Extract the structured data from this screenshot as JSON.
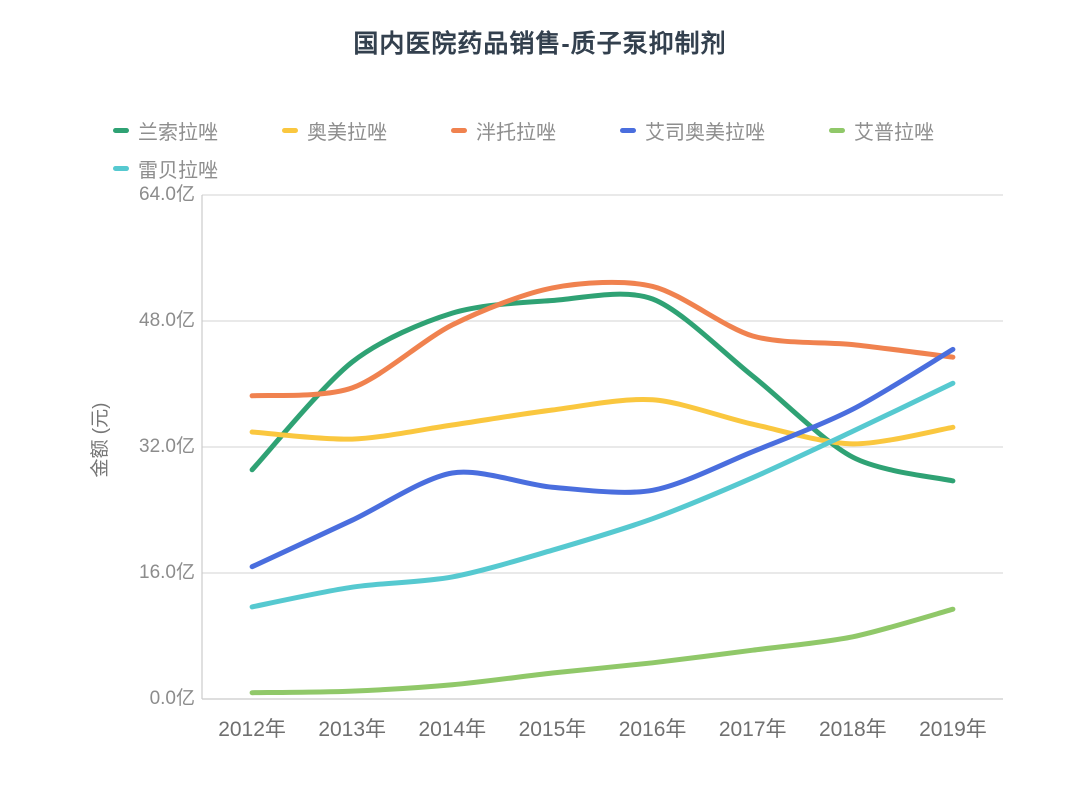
{
  "title": "国内医院药品销售-质子泵抑制剂",
  "legend": {
    "items": [
      "兰索拉唑",
      "奥美拉唑",
      "泮托拉唑",
      "艾司奥美拉唑",
      "艾普拉唑",
      "雷贝拉唑"
    ]
  },
  "y_axis": {
    "name": "金额 (元)",
    "tick_labels_top_to_bottom": [
      "64.0亿",
      "48.0亿",
      "32.0亿",
      "16.0亿",
      "0.0亿"
    ]
  },
  "x_axis": {
    "tick_labels": [
      "2012年",
      "2013年",
      "2014年",
      "2015年",
      "2016年",
      "2017年",
      "2018年",
      "2019年"
    ]
  },
  "chart_data": {
    "type": "line",
    "smooth": true,
    "title": "国内医院药品销售-质子泵抑制剂",
    "categories": [
      "2012年",
      "2013年",
      "2014年",
      "2015年",
      "2016年",
      "2017年",
      "2018年",
      "2019年"
    ],
    "series": [
      {
        "name": "兰索拉唑",
        "color": "#2FA274",
        "values": [
          29.1,
          42.8,
          49.0,
          50.6,
          50.8,
          41.0,
          30.7,
          27.7
        ]
      },
      {
        "name": "奥美拉唑",
        "color": "#FAC73F",
        "values": [
          33.9,
          33.0,
          34.8,
          36.7,
          38.0,
          34.9,
          32.4,
          34.5
        ]
      },
      {
        "name": "泮托拉唑",
        "color": "#F0824F",
        "values": [
          38.5,
          39.5,
          47.5,
          52.2,
          52.4,
          46.1,
          45.0,
          43.4
        ]
      },
      {
        "name": "艾司奥美拉唑",
        "color": "#4A6EDE",
        "values": [
          16.8,
          22.7,
          28.7,
          26.9,
          26.5,
          31.4,
          36.8,
          44.4
        ]
      },
      {
        "name": "艾普拉唑",
        "color": "#90C869",
        "values": [
          0.8,
          1.0,
          1.8,
          3.3,
          4.6,
          6.2,
          7.9,
          11.4
        ]
      },
      {
        "name": "雷贝拉唑",
        "color": "#56C9D0",
        "values": [
          11.7,
          14.2,
          15.5,
          18.9,
          22.9,
          28.1,
          34.0,
          40.1
        ]
      }
    ],
    "xlabel": "",
    "ylabel": "金额 (元)",
    "unit": "亿",
    "ylim": [
      0,
      64
    ],
    "yticks": [
      0,
      16,
      32,
      48,
      64
    ],
    "grid": true,
    "legend_position": "top"
  },
  "colors": {
    "background": "#FFFFFF",
    "grid_line": "#DCDCDC",
    "axis_line": "#CBCBCB",
    "title_text": "#33404E",
    "legend_text": "#8E8E8E",
    "y_tick_text": "#8C8C8C",
    "x_tick_text": "#6F6F6F"
  }
}
